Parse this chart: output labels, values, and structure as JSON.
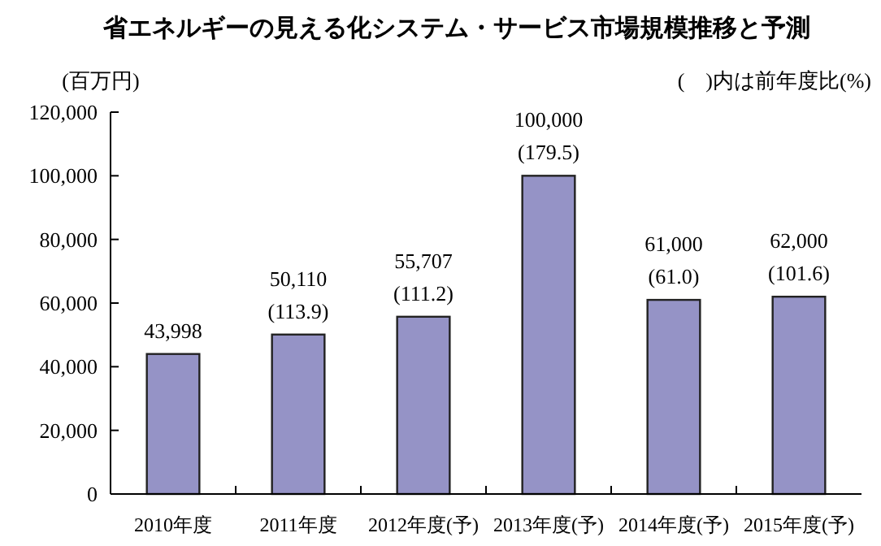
{
  "chart_data": {
    "type": "bar",
    "title": "省エネルギーの見える化システム・サービス市場規模推移と予測",
    "ylabel": "(百万円)",
    "annotations": [
      "(　)内は前年度比(%)"
    ],
    "categories": [
      "2010年度",
      "2011年度",
      "2012年度(予)",
      "2013年度(予)",
      "2014年度(予)",
      "2015年度(予)"
    ],
    "values": [
      43998,
      50110,
      55707,
      100000,
      61000,
      62000
    ],
    "value_labels": [
      "43,998",
      "50,110\n(113.9)",
      "55,707\n(111.2)",
      "100,000\n(179.5)",
      "61,000\n(61.0)",
      "62,000\n(101.6)"
    ],
    "color": "#9593c6",
    "ylim": [
      0,
      120000
    ],
    "yticks": [
      {
        "value": 0,
        "label": "0"
      },
      {
        "value": 20000,
        "label": "20,000"
      },
      {
        "value": 40000,
        "label": "40,000"
      },
      {
        "value": 60000,
        "label": "60,000"
      },
      {
        "value": 80000,
        "label": "80,000"
      },
      {
        "value": 100000,
        "label": "100,000"
      },
      {
        "value": 120000,
        "label": "120,000"
      }
    ],
    "tick_labels": true
  }
}
